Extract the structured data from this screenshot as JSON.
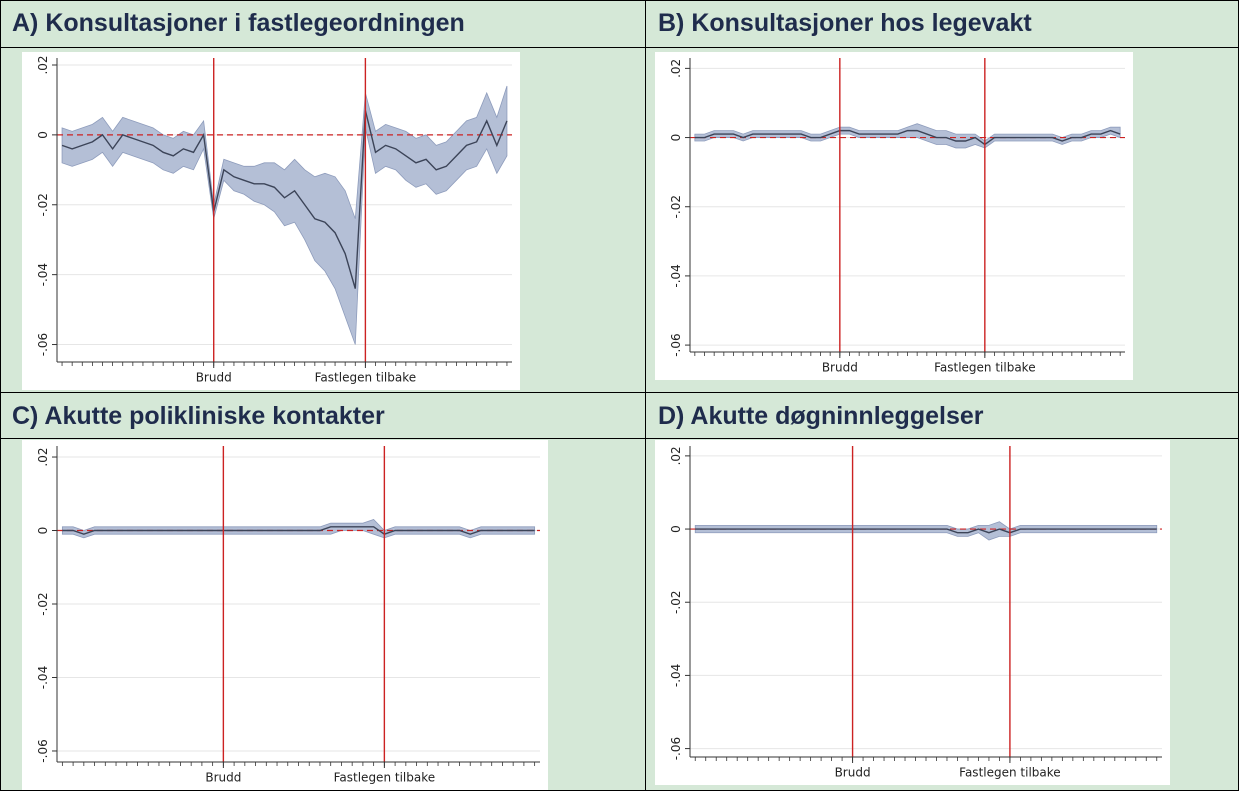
{
  "chart_data": [
    {
      "type": "line_band",
      "title": "A) Konsultasjoner i fastlegeordningen",
      "x": [
        -30,
        -28,
        -26,
        -24,
        -22,
        -20,
        -18,
        -16,
        -14,
        -12,
        -10,
        -8,
        -6,
        -4,
        -2,
        0,
        2,
        4,
        6,
        8,
        10,
        12,
        14,
        16,
        18,
        20,
        22,
        24,
        26,
        28,
        30,
        32,
        34,
        36,
        38,
        40,
        42,
        44,
        46,
        48,
        50,
        52,
        54,
        56,
        58
      ],
      "values": [
        -0.003,
        -0.004,
        -0.003,
        -0.002,
        0.0,
        -0.004,
        0.0,
        -0.001,
        -0.002,
        -0.003,
        -0.005,
        -0.006,
        -0.004,
        -0.005,
        0.0,
        -0.022,
        -0.01,
        -0.012,
        -0.013,
        -0.014,
        -0.014,
        -0.015,
        -0.018,
        -0.016,
        -0.02,
        -0.024,
        -0.025,
        -0.028,
        -0.034,
        -0.044,
        0.007,
        -0.005,
        -0.003,
        -0.004,
        -0.006,
        -0.008,
        -0.007,
        -0.01,
        -0.009,
        -0.006,
        -0.003,
        -0.002,
        0.004,
        -0.003,
        0.004
      ],
      "lower": [
        -0.008,
        -0.009,
        -0.008,
        -0.007,
        -0.005,
        -0.009,
        -0.005,
        -0.006,
        -0.007,
        -0.008,
        -0.01,
        -0.011,
        -0.009,
        -0.01,
        -0.004,
        -0.024,
        -0.013,
        -0.016,
        -0.017,
        -0.019,
        -0.02,
        -0.022,
        -0.026,
        -0.025,
        -0.03,
        -0.036,
        -0.039,
        -0.044,
        -0.052,
        -0.06,
        0.002,
        -0.011,
        -0.009,
        -0.01,
        -0.013,
        -0.015,
        -0.014,
        -0.017,
        -0.016,
        -0.013,
        -0.01,
        -0.009,
        -0.004,
        -0.011,
        -0.006
      ],
      "upper": [
        0.002,
        0.001,
        0.002,
        0.003,
        0.005,
        0.001,
        0.005,
        0.004,
        0.003,
        0.002,
        0.0,
        -0.001,
        0.001,
        0.0,
        0.004,
        -0.02,
        -0.007,
        -0.008,
        -0.009,
        -0.009,
        -0.008,
        -0.008,
        -0.01,
        -0.007,
        -0.01,
        -0.012,
        -0.011,
        -0.012,
        -0.016,
        -0.024,
        0.012,
        0.001,
        0.003,
        0.002,
        0.001,
        -0.001,
        0.0,
        -0.003,
        -0.002,
        0.001,
        0.004,
        0.005,
        0.012,
        0.005,
        0.014
      ],
      "xlim": [
        -31,
        59
      ],
      "ylim": [
        -0.065,
        0.022
      ],
      "xticks": [
        {
          "value": 0,
          "label": "Brudd"
        },
        {
          "value": 30,
          "label": "Fastlegen tilbake"
        }
      ],
      "yticks": [
        {
          "value": 0.02,
          "label": ".02"
        },
        0,
        {
          "value": -0.02,
          "label": "-.02"
        },
        {
          "value": -0.04,
          "label": "-.04"
        },
        {
          "value": -0.06,
          "label": "-.06"
        }
      ],
      "hline": 0,
      "grid": true,
      "color": "#3c4458",
      "band_color": "#b4bfd6",
      "ref_color": "#cc2222"
    },
    {
      "type": "line_band",
      "title": "B) Konsultasjoner hos legevakt",
      "x": [
        -30,
        -28,
        -26,
        -24,
        -22,
        -20,
        -18,
        -16,
        -14,
        -12,
        -10,
        -8,
        -6,
        -4,
        -2,
        0,
        2,
        4,
        6,
        8,
        10,
        12,
        14,
        16,
        18,
        20,
        22,
        24,
        26,
        28,
        30,
        32,
        34,
        36,
        38,
        40,
        42,
        44,
        46,
        48,
        50,
        52,
        54,
        56,
        58
      ],
      "values": [
        0.0,
        0.0,
        0.001,
        0.001,
        0.001,
        0.0,
        0.001,
        0.001,
        0.001,
        0.001,
        0.001,
        0.001,
        0.0,
        0.0,
        0.001,
        0.002,
        0.002,
        0.001,
        0.001,
        0.001,
        0.001,
        0.001,
        0.002,
        0.002,
        0.001,
        0.0,
        0.0,
        -0.001,
        -0.001,
        0.0,
        -0.002,
        0.0,
        0.0,
        0.0,
        0.0,
        0.0,
        0.0,
        0.0,
        -0.001,
        0.0,
        0.0,
        0.001,
        0.001,
        0.002,
        0.001
      ],
      "lower": [
        -0.001,
        -0.001,
        0.0,
        0.0,
        0.0,
        -0.001,
        0.0,
        0.0,
        0.0,
        0.0,
        0.0,
        0.0,
        -0.001,
        -0.001,
        0.0,
        0.001,
        0.001,
        0.0,
        0.0,
        0.0,
        0.0,
        0.0,
        0.0,
        0.0,
        -0.001,
        -0.002,
        -0.002,
        -0.003,
        -0.003,
        -0.002,
        -0.003,
        -0.001,
        -0.001,
        -0.001,
        -0.001,
        -0.001,
        -0.001,
        -0.001,
        -0.002,
        -0.001,
        -0.001,
        0.0,
        0.0,
        0.001,
        0.0
      ],
      "upper": [
        0.001,
        0.001,
        0.002,
        0.002,
        0.002,
        0.001,
        0.002,
        0.002,
        0.002,
        0.002,
        0.002,
        0.002,
        0.001,
        0.001,
        0.002,
        0.003,
        0.003,
        0.002,
        0.002,
        0.002,
        0.002,
        0.002,
        0.003,
        0.004,
        0.003,
        0.002,
        0.002,
        0.001,
        0.001,
        0.001,
        -0.001,
        0.001,
        0.001,
        0.001,
        0.001,
        0.001,
        0.001,
        0.001,
        0.0,
        0.001,
        0.001,
        0.002,
        0.002,
        0.003,
        0.003
      ],
      "xlim": [
        -31,
        59
      ],
      "ylim": [
        -0.062,
        0.023
      ],
      "xticks": [
        {
          "value": 0,
          "label": "Brudd"
        },
        {
          "value": 30,
          "label": "Fastlegen tilbake"
        }
      ],
      "yticks": [
        {
          "value": 0.02,
          "label": ".02"
        },
        0,
        {
          "value": -0.02,
          "label": "-.02"
        },
        {
          "value": -0.04,
          "label": "-.04"
        },
        {
          "value": -0.06,
          "label": "-.06"
        }
      ],
      "hline": 0,
      "grid": true,
      "color": "#3c4458",
      "band_color": "#b4bfd6",
      "ref_color": "#cc2222"
    },
    {
      "type": "line_band",
      "title": "C) Akutte polikliniske kontakter",
      "x": [
        -30,
        -28,
        -26,
        -24,
        -22,
        -20,
        -18,
        -16,
        -14,
        -12,
        -10,
        -8,
        -6,
        -4,
        -2,
        0,
        2,
        4,
        6,
        8,
        10,
        12,
        14,
        16,
        18,
        20,
        22,
        24,
        26,
        28,
        30,
        32,
        34,
        36,
        38,
        40,
        42,
        44,
        46,
        48,
        50,
        52,
        54,
        56,
        58
      ],
      "values": [
        0.0,
        0.0,
        -0.001,
        0.0,
        0.0,
        0.0,
        0.0,
        0.0,
        0.0,
        0.0,
        0.0,
        0.0,
        0.0,
        0.0,
        0.0,
        0.0,
        0.0,
        0.0,
        0.0,
        0.0,
        0.0,
        0.0,
        0.0,
        0.0,
        0.0,
        0.001,
        0.001,
        0.001,
        0.001,
        0.001,
        -0.001,
        0.0,
        0.0,
        0.0,
        0.0,
        0.0,
        0.0,
        0.0,
        -0.001,
        0.0,
        0.0,
        0.0,
        0.0,
        0.0,
        0.0
      ],
      "lower": [
        -0.001,
        -0.001,
        -0.002,
        -0.001,
        -0.001,
        -0.001,
        -0.001,
        -0.001,
        -0.001,
        -0.001,
        -0.001,
        -0.001,
        -0.001,
        -0.001,
        -0.001,
        -0.001,
        -0.001,
        -0.001,
        -0.001,
        -0.001,
        -0.001,
        -0.001,
        -0.001,
        -0.001,
        -0.001,
        -0.001,
        0.0,
        0.0,
        0.0,
        -0.001,
        -0.002,
        -0.001,
        -0.001,
        -0.001,
        -0.001,
        -0.001,
        -0.001,
        -0.001,
        -0.002,
        -0.001,
        -0.001,
        -0.001,
        -0.001,
        -0.001,
        -0.001
      ],
      "upper": [
        0.001,
        0.001,
        0.0,
        0.001,
        0.001,
        0.001,
        0.001,
        0.001,
        0.001,
        0.001,
        0.001,
        0.001,
        0.001,
        0.001,
        0.001,
        0.001,
        0.001,
        0.001,
        0.001,
        0.001,
        0.001,
        0.001,
        0.001,
        0.001,
        0.001,
        0.002,
        0.002,
        0.002,
        0.002,
        0.003,
        0.0,
        0.001,
        0.001,
        0.001,
        0.001,
        0.001,
        0.001,
        0.001,
        0.0,
        0.001,
        0.001,
        0.001,
        0.001,
        0.001,
        0.001
      ],
      "xlim": [
        -31,
        59
      ],
      "ylim": [
        -0.063,
        0.023
      ],
      "xticks": [
        {
          "value": 0,
          "label": "Brudd"
        },
        {
          "value": 30,
          "label": "Fastlegen tilbake"
        }
      ],
      "yticks": [
        {
          "value": 0.02,
          "label": ".02"
        },
        0,
        {
          "value": -0.02,
          "label": "-.02"
        },
        {
          "value": -0.04,
          "label": "-.04"
        },
        {
          "value": -0.06,
          "label": "-.06"
        }
      ],
      "hline": 0,
      "grid": true,
      "color": "#3c4458",
      "band_color": "#b4bfd6",
      "ref_color": "#cc2222"
    },
    {
      "type": "line_band",
      "title": "D) Akutte døgninnleggelser",
      "x": [
        -30,
        -28,
        -26,
        -24,
        -22,
        -20,
        -18,
        -16,
        -14,
        -12,
        -10,
        -8,
        -6,
        -4,
        -2,
        0,
        2,
        4,
        6,
        8,
        10,
        12,
        14,
        16,
        18,
        20,
        22,
        24,
        26,
        28,
        30,
        32,
        34,
        36,
        38,
        40,
        42,
        44,
        46,
        48,
        50,
        52,
        54,
        56,
        58
      ],
      "values": [
        0.0,
        0.0,
        0.0,
        0.0,
        0.0,
        0.0,
        0.0,
        0.0,
        0.0,
        0.0,
        0.0,
        0.0,
        0.0,
        0.0,
        0.0,
        0.0,
        0.0,
        0.0,
        0.0,
        0.0,
        0.0,
        0.0,
        0.0,
        0.0,
        0.0,
        -0.001,
        -0.001,
        0.0,
        -0.001,
        0.0,
        -0.001,
        0.0,
        0.0,
        0.0,
        0.0,
        0.0,
        0.0,
        0.0,
        0.0,
        0.0,
        0.0,
        0.0,
        0.0,
        0.0,
        0.0
      ],
      "lower": [
        -0.001,
        -0.001,
        -0.001,
        -0.001,
        -0.001,
        -0.001,
        -0.001,
        -0.001,
        -0.001,
        -0.001,
        -0.001,
        -0.001,
        -0.001,
        -0.001,
        -0.001,
        -0.001,
        -0.001,
        -0.001,
        -0.001,
        -0.001,
        -0.001,
        -0.001,
        -0.001,
        -0.001,
        -0.001,
        -0.002,
        -0.002,
        -0.001,
        -0.003,
        -0.002,
        -0.002,
        -0.001,
        -0.001,
        -0.001,
        -0.001,
        -0.001,
        -0.001,
        -0.001,
        -0.001,
        -0.001,
        -0.001,
        -0.001,
        -0.001,
        -0.001,
        -0.001
      ],
      "upper": [
        0.001,
        0.001,
        0.001,
        0.001,
        0.001,
        0.001,
        0.001,
        0.001,
        0.001,
        0.001,
        0.001,
        0.001,
        0.001,
        0.001,
        0.001,
        0.001,
        0.001,
        0.001,
        0.001,
        0.001,
        0.001,
        0.001,
        0.001,
        0.001,
        0.001,
        0.0,
        0.0,
        0.001,
        0.001,
        0.002,
        0.0,
        0.001,
        0.001,
        0.001,
        0.001,
        0.001,
        0.001,
        0.001,
        0.001,
        0.001,
        0.001,
        0.001,
        0.001,
        0.001,
        0.001
      ],
      "xlim": [
        -31,
        59
      ],
      "ylim": [
        -0.0623,
        0.0227
      ],
      "xticks": [
        {
          "value": 0,
          "label": "Brudd"
        },
        {
          "value": 30,
          "label": "Fastlegen tilbake"
        }
      ],
      "yticks": [
        {
          "value": 0.02,
          "label": ".02"
        },
        0,
        {
          "value": -0.02,
          "label": "-.02"
        },
        {
          "value": -0.04,
          "label": "-.04"
        },
        {
          "value": -0.06,
          "label": "-.06"
        }
      ],
      "hline": 0,
      "grid": true,
      "color": "#3c4458",
      "band_color": "#b4bfd6",
      "ref_color": "#cc2222"
    }
  ]
}
